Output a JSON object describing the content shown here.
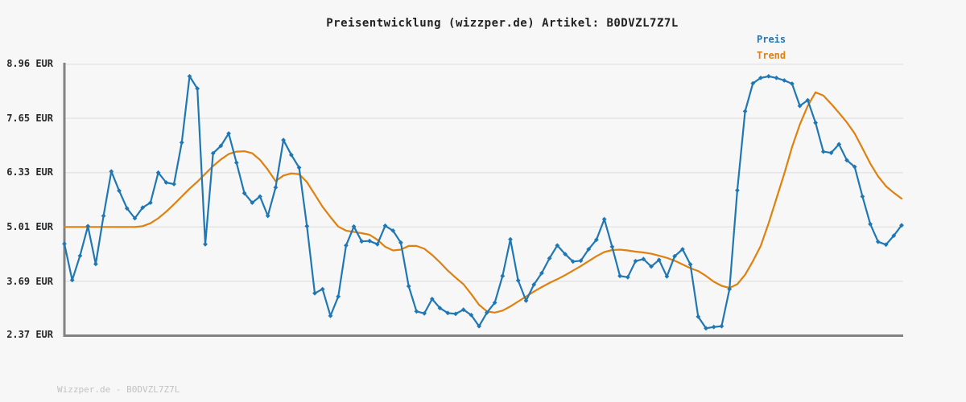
{
  "title": "Preisentwicklung (wizzper.de) Artikel: B0DVZL7Z7L",
  "footer": "Wizzper.de - B0DVZL7Z7L",
  "legend": {
    "price_label": "Preis",
    "trend_label": "Trend"
  },
  "colors": {
    "price": "#1f77b4",
    "trend": "#de810f",
    "grid": "#e5e5e5",
    "axis": "#828282",
    "background": "#f7f7f7",
    "tick_text": "#26282a",
    "title_text": "#222222",
    "footer_text": "#c2c2c2"
  },
  "chart_data": {
    "type": "line",
    "title": "Preisentwicklung (wizzper.de) Artikel: B0DVZL7Z7L",
    "y_unit": "EUR",
    "ylim": [
      2.37,
      8.96
    ],
    "y_ticks": [
      8.96,
      7.65,
      6.33,
      5.01,
      3.69,
      2.37
    ],
    "y_tick_labels": [
      "8.96 EUR",
      "7.65 EUR",
      "6.33 EUR",
      "5.01 EUR",
      "3.69 EUR",
      "2.37 EUR"
    ],
    "x_axis_labels_visible": false,
    "grid": true,
    "legend_position": "top-right",
    "series": [
      {
        "name": "Preis",
        "color": "#1f77b4",
        "marker": "diamond",
        "values": [
          4.6,
          3.72,
          4.31,
          5.03,
          4.11,
          5.28,
          6.36,
          5.89,
          5.46,
          5.22,
          5.48,
          5.6,
          6.33,
          6.09,
          6.05,
          7.06,
          8.67,
          8.37,
          4.59,
          6.8,
          6.98,
          7.28,
          6.57,
          5.83,
          5.6,
          5.75,
          5.28,
          5.97,
          7.12,
          6.76,
          6.45,
          5.03,
          3.4,
          3.5,
          2.85,
          3.32,
          4.56,
          5.02,
          4.66,
          4.67,
          4.59,
          5.04,
          4.92,
          4.63,
          3.57,
          2.96,
          2.91,
          3.26,
          3.04,
          2.92,
          2.9,
          3.0,
          2.87,
          2.6,
          2.93,
          3.17,
          3.82,
          4.71,
          3.71,
          3.22,
          3.61,
          3.89,
          4.25,
          4.56,
          4.35,
          4.17,
          4.19,
          4.47,
          4.7,
          5.2,
          4.53,
          3.82,
          3.79,
          4.18,
          4.23,
          4.05,
          4.21,
          3.81,
          4.3,
          4.47,
          4.1,
          2.83,
          2.55,
          2.58,
          2.6,
          3.5,
          5.9,
          7.82,
          8.5,
          8.63,
          8.67,
          8.63,
          8.57,
          8.49,
          7.95,
          8.09,
          7.54,
          6.84,
          6.81,
          7.02,
          6.63,
          6.47,
          5.75,
          5.08,
          4.65,
          4.58,
          4.8,
          5.05
        ]
      },
      {
        "name": "Trend",
        "color": "#de810f",
        "marker": "none",
        "values": [
          5.01,
          5.01,
          5.01,
          5.01,
          5.01,
          5.01,
          5.01,
          5.01,
          5.01,
          5.01,
          5.03,
          5.1,
          5.22,
          5.38,
          5.56,
          5.75,
          5.94,
          6.11,
          6.3,
          6.49,
          6.65,
          6.78,
          6.84,
          6.85,
          6.8,
          6.64,
          6.4,
          6.12,
          6.26,
          6.31,
          6.29,
          6.1,
          5.8,
          5.5,
          5.25,
          5.02,
          4.92,
          4.89,
          4.86,
          4.82,
          4.7,
          4.53,
          4.44,
          4.46,
          4.55,
          4.55,
          4.48,
          4.33,
          4.15,
          3.95,
          3.78,
          3.62,
          3.38,
          3.12,
          2.96,
          2.93,
          2.98,
          3.08,
          3.2,
          3.32,
          3.44,
          3.55,
          3.65,
          3.74,
          3.84,
          3.95,
          4.06,
          4.18,
          4.3,
          4.4,
          4.45,
          4.46,
          4.44,
          4.41,
          4.39,
          4.36,
          4.31,
          4.26,
          4.19,
          4.1,
          4.01,
          3.94,
          3.82,
          3.68,
          3.58,
          3.53,
          3.62,
          3.85,
          4.18,
          4.55,
          5.1,
          5.7,
          6.3,
          6.95,
          7.5,
          7.95,
          8.28,
          8.2,
          8.0,
          7.78,
          7.55,
          7.28,
          6.92,
          6.55,
          6.24,
          6.0,
          5.84,
          5.7
        ]
      }
    ]
  }
}
